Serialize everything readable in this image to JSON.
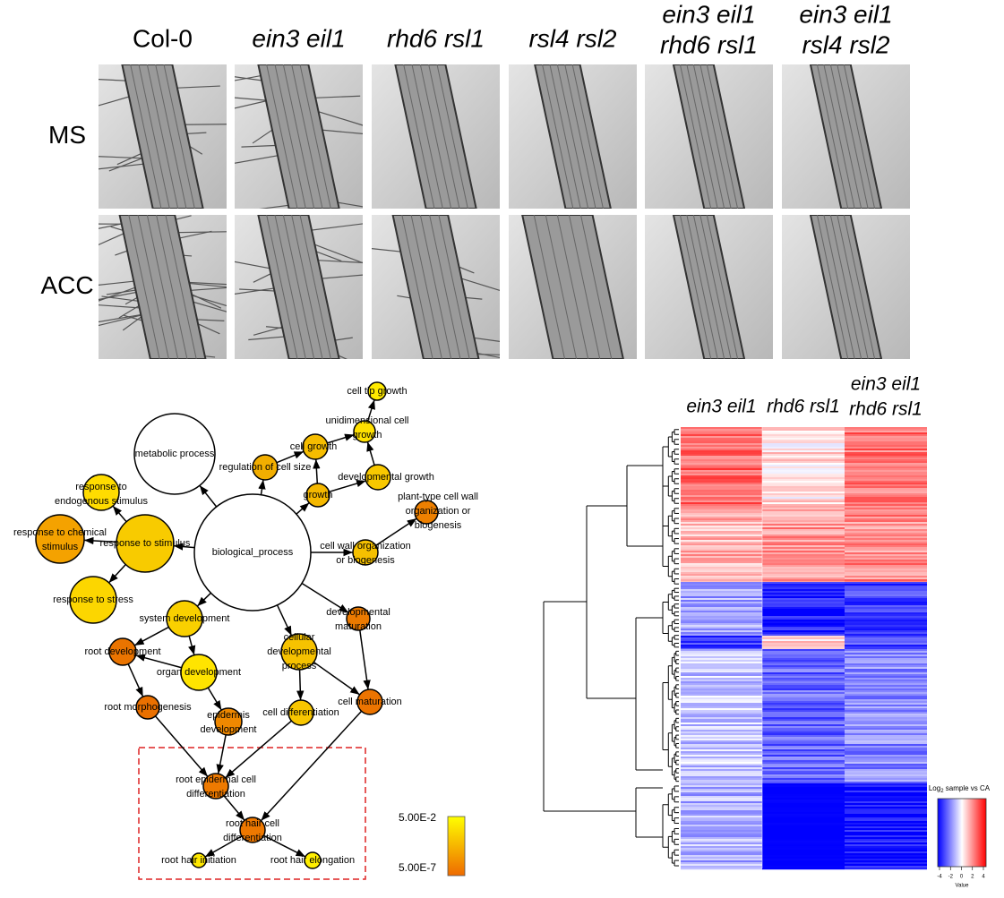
{
  "panel_a": {
    "columns": [
      [
        "Col-0"
      ],
      [
        "ein3 eil1"
      ],
      [
        "rhd6 rsl1"
      ],
      [
        "rsl4 rsl2"
      ],
      [
        "ein3 eil1",
        "rhd6 rsl1"
      ],
      [
        "ein3 eil1",
        "rsl4 rsl2"
      ]
    ],
    "rows": [
      "MS",
      "ACC"
    ]
  },
  "network": {
    "nodes": [
      {
        "label": [
          "cell tip growth"
        ],
        "color": "#ffea00"
      },
      {
        "label": [
          "unidimensional cell",
          "growth"
        ],
        "color": "#ffe000"
      },
      {
        "label": [
          "metabolic process"
        ],
        "color": "#ffffff"
      },
      {
        "label": [
          "cell growth"
        ],
        "color": "#f6bd00"
      },
      {
        "label": [
          "regulation of cell size"
        ],
        "color": "#f2ae00"
      },
      {
        "label": [
          "developmental growth"
        ],
        "color": "#f8c800"
      },
      {
        "label": [
          "response to",
          "endogenous stimulus"
        ],
        "color": "#ffdc00"
      },
      {
        "label": [
          "growth"
        ],
        "color": "#f5b800"
      },
      {
        "label": [
          "plant-type cell wall",
          "organization or",
          "biogenesis"
        ],
        "color": "#ee8000"
      },
      {
        "label": [
          "response to chemical",
          "stimulus"
        ],
        "color": "#f4a200"
      },
      {
        "label": [
          "response to stimulus"
        ],
        "color": "#f8cb00"
      },
      {
        "label": [
          "biological_process"
        ],
        "color": "#ffffff"
      },
      {
        "label": [
          "cell wall organization",
          "or biogenesis"
        ],
        "color": "#f5c000"
      },
      {
        "label": [
          "response to stress"
        ],
        "color": "#fcd600"
      },
      {
        "label": [
          "system development"
        ],
        "color": "#f9d000"
      },
      {
        "label": [
          "developmental",
          "maturation"
        ],
        "color": "#ec7a00"
      },
      {
        "label": [
          "root development"
        ],
        "color": "#ea7400"
      },
      {
        "label": [
          "cellular",
          "developmental",
          "process"
        ],
        "color": "#f6c200"
      },
      {
        "label": [
          "organ development"
        ],
        "color": "#ffe400"
      },
      {
        "label": [
          "root morphogenesis"
        ],
        "color": "#ea7000"
      },
      {
        "label": [
          "cell maturation"
        ],
        "color": "#ec7400"
      },
      {
        "label": [
          "epidermis",
          "development"
        ],
        "color": "#ef8800"
      },
      {
        "label": [
          "cell differentiation"
        ],
        "color": "#f8c600"
      },
      {
        "label": [
          "root epidermal cell",
          "differentiation"
        ],
        "color": "#ee7a00"
      },
      {
        "label": [
          "root hair cell",
          "differentiation"
        ],
        "color": "#ee7800"
      },
      {
        "label": [
          "root hair initiation"
        ],
        "color": "#ffe800"
      },
      {
        "label": [
          "root hair elongation"
        ],
        "color": "#ffee00"
      }
    ],
    "legend": {
      "top": "5.00E-2",
      "bottom": "5.00E-7"
    }
  },
  "heatmap": {
    "columns": [
      [
        "ein3 eil1"
      ],
      [
        "rhd6 rsl1"
      ],
      [
        "ein3 eil1",
        "rhd6 rsl1"
      ]
    ],
    "key": {
      "title": [
        "Log",
        "2",
        " sample vs CA"
      ],
      "ticks": [
        -4,
        -2,
        0,
        2,
        4
      ],
      "axis_label": "Value"
    }
  }
}
